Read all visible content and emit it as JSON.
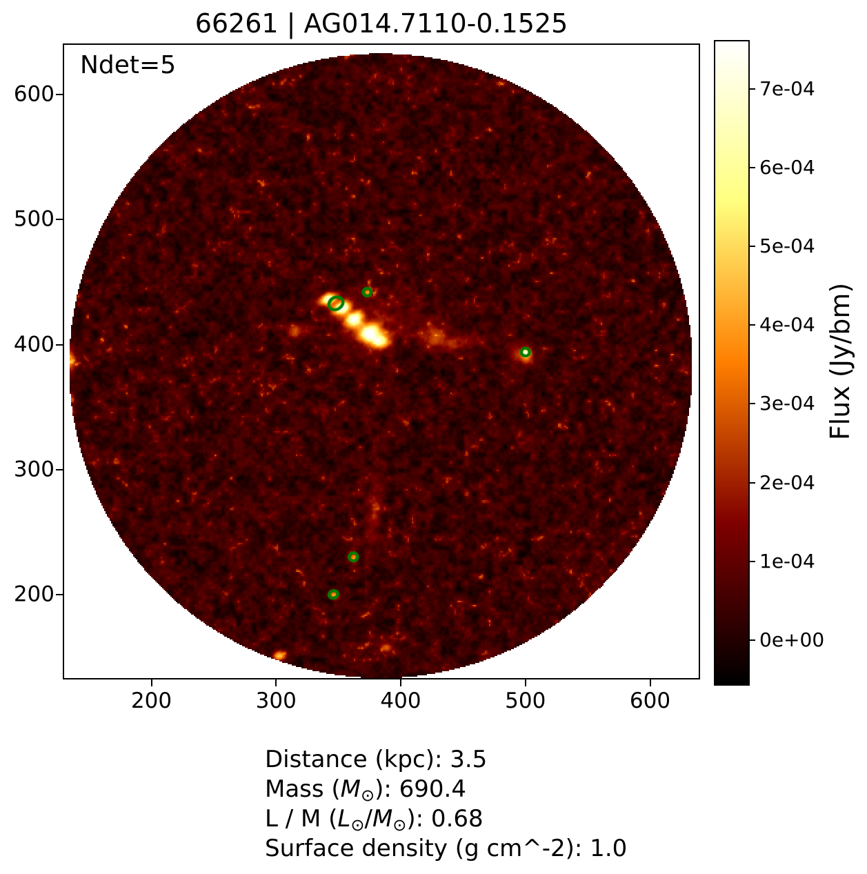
{
  "chart_data": {
    "type": "heatmap",
    "title": "66261 | AG014.7110-0.1525",
    "annotation": "Ndet=5",
    "xlim": [
      130,
      639
    ],
    "ylim": [
      133,
      640
    ],
    "x_ticks": [
      200,
      300,
      400,
      500,
      600
    ],
    "y_ticks": [
      200,
      300,
      400,
      500,
      600
    ],
    "grid": false,
    "colormap": "afmhot",
    "marker_color": "#007d00",
    "field": {
      "center_x": 384,
      "center_y": 383,
      "radius": 250,
      "outside_color": "#ffffff"
    },
    "colorbar": {
      "label": "Flux (Jy/bm)",
      "side": "right",
      "vmin": -5.6e-05,
      "vmax": 0.00076,
      "ticks": [
        {
          "value": 0.0,
          "label": "0e+00"
        },
        {
          "value": 0.0001,
          "label": "1e-04"
        },
        {
          "value": 0.0002,
          "label": "2e-04"
        },
        {
          "value": 0.0003,
          "label": "3e-04"
        },
        {
          "value": 0.0004,
          "label": "4e-04"
        },
        {
          "value": 0.0005,
          "label": "5e-04"
        },
        {
          "value": 0.0006,
          "label": "6e-04"
        },
        {
          "value": 0.0007,
          "label": "7e-04"
        }
      ]
    },
    "detections": [
      {
        "x": 348,
        "y": 433,
        "rx": 5.9,
        "ry": 4.8,
        "angle": -30
      },
      {
        "x": 373,
        "y": 442,
        "rx": 3.2,
        "ry": 3.0,
        "angle": 0
      },
      {
        "x": 500,
        "y": 394,
        "rx": 3.3,
        "ry": 3.1,
        "angle": 0
      },
      {
        "x": 362,
        "y": 230,
        "rx": 3.4,
        "ry": 3.2,
        "angle": 0
      },
      {
        "x": 346,
        "y": 200,
        "rx": 3.6,
        "ry": 2.9,
        "angle": -20
      }
    ],
    "features": [
      [
        341,
        437,
        0.00065,
        5.0,
        3.0,
        -25
      ],
      [
        352,
        430,
        0.00075,
        5.5,
        3.5,
        -30
      ],
      [
        362,
        421,
        0.00072,
        5.0,
        4.0,
        -30
      ],
      [
        374,
        410,
        0.00068,
        6.0,
        4.5,
        -20
      ],
      [
        383,
        403,
        0.0005,
        5.0,
        4.0,
        0
      ],
      [
        373,
        442,
        0.00038,
        2.2,
        2.2,
        0
      ],
      [
        500,
        394,
        0.00045,
        2.6,
        2.6,
        0
      ],
      [
        497,
        391,
        0.00022,
        7.0,
        5.0,
        20
      ],
      [
        445,
        402,
        0.00016,
        14.0,
        5.0,
        -5
      ],
      [
        425,
        408,
        0.00018,
        8.0,
        6.0,
        0
      ],
      [
        362,
        230,
        0.00032,
        2.4,
        2.4,
        0
      ],
      [
        346,
        200,
        0.0004,
        2.6,
        2.2,
        0
      ],
      [
        302,
        151,
        0.00042,
        3.5,
        2.5,
        0
      ],
      [
        316,
        411,
        0.00022,
        5.0,
        4.0,
        0
      ],
      [
        134,
        388,
        0.00028,
        3.0,
        7.0,
        0
      ],
      [
        380,
        416,
        0.00012,
        22.0,
        13.0,
        -20
      ],
      [
        378,
        268,
        0.00013,
        4.0,
        18.0,
        5
      ],
      [
        388,
        158,
        0.00025,
        3.0,
        2.5,
        0
      ]
    ],
    "noise": {
      "seed": 7,
      "base": 4.2e-05,
      "scale": 0.000105,
      "ridge_threshold": 0.4,
      "ridge_gain": 0.00065
    }
  },
  "info_panel": {
    "lines": [
      {
        "segments": [
          {
            "text": "Distance (kpc): 3.5"
          }
        ]
      },
      {
        "segments": [
          {
            "text": "Mass ("
          },
          {
            "text": "M",
            "italic": true
          },
          {
            "text": "⊙",
            "sub": true
          },
          {
            "text": "): 690.4"
          }
        ]
      },
      {
        "segments": [
          {
            "text": "L / M ("
          },
          {
            "text": "L",
            "italic": true
          },
          {
            "text": "⊙",
            "sub": true
          },
          {
            "text": "/"
          },
          {
            "text": "M",
            "italic": true
          },
          {
            "text": "⊙",
            "sub": true
          },
          {
            "text": "): 0.68"
          }
        ]
      },
      {
        "segments": [
          {
            "text": "Surface density (g cm^-2): 1.0"
          }
        ]
      }
    ]
  }
}
